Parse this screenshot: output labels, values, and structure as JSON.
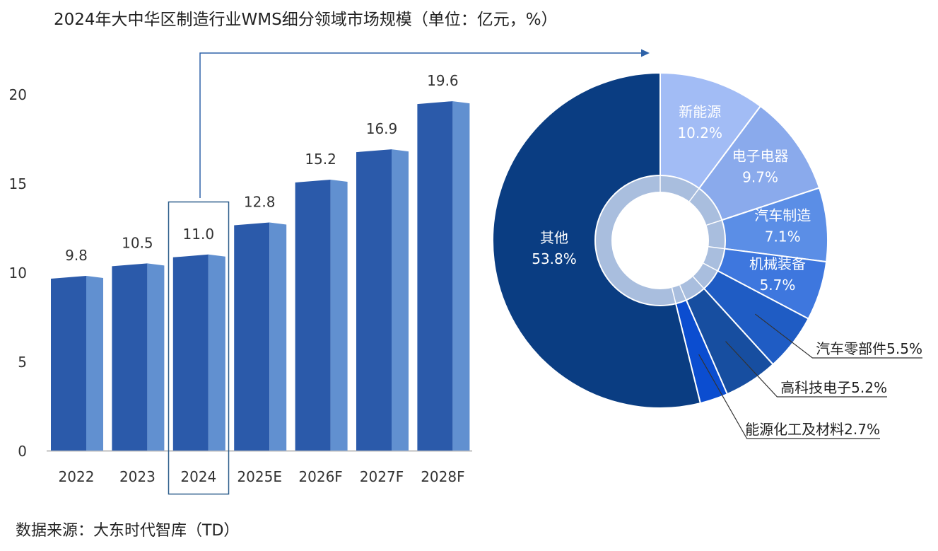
{
  "title": "2024年大中华区制造行业WMS细分领域市场规模（单位：亿元，%）",
  "source": "数据来源：大东时代智库（TD）",
  "colors": {
    "bar_front": "#2b5aaa",
    "bar_side": "#6190d0",
    "bar_top": "#3d6bb8",
    "axis": "#bfbfbf",
    "highlight_box": "#2b5c8a",
    "arrow": "#2e62a8",
    "inner_ring": "#a9bede",
    "label_line": "#333333"
  },
  "chart_data": [
    {
      "type": "bar",
      "categories": [
        "2022",
        "2023",
        "2024",
        "2025E",
        "2026F",
        "2027F",
        "2028F"
      ],
      "values": [
        9.8,
        10.5,
        11.0,
        12.8,
        15.2,
        16.9,
        19.6
      ],
      "value_labels": [
        "9.8",
        "10.5",
        "11.0",
        "12.8",
        "15.2",
        "16.9",
        "19.6"
      ],
      "yticks": [
        0,
        5,
        10,
        15,
        20
      ],
      "ylim": [
        0,
        20
      ],
      "highlighted_category": "2024",
      "grid": false
    },
    {
      "type": "pie",
      "style": "donut",
      "slices": [
        {
          "label": "新能源",
          "value": 10.2,
          "pct": "10.2%",
          "color": "#a2bcf5",
          "label_pos": "inside"
        },
        {
          "label": "电子电器",
          "value": 9.7,
          "pct": "9.7%",
          "color": "#8aaaec",
          "label_pos": "inside"
        },
        {
          "label": "汽车制造",
          "value": 7.1,
          "pct": "7.1%",
          "color": "#5b8ee6",
          "label_pos": "inside"
        },
        {
          "label": "机械装备",
          "value": 5.7,
          "pct": "5.7%",
          "color": "#3e77de",
          "label_pos": "inside"
        },
        {
          "label": "汽车零部件",
          "value": 5.5,
          "pct": "5.5%",
          "color": "#1f5cc4",
          "label_pos": "outside"
        },
        {
          "label": "高科技电子",
          "value": 5.2,
          "pct": "5.2%",
          "color": "#174ea0",
          "label_pos": "outside"
        },
        {
          "label": "能源化工及材料",
          "value": 2.7,
          "pct": "2.7%",
          "color": "#0b4dd0",
          "label_pos": "outside"
        },
        {
          "label": "其他",
          "value": 53.8,
          "pct": "53.8%",
          "color": "#0a3d82",
          "label_pos": "inside"
        }
      ]
    }
  ]
}
